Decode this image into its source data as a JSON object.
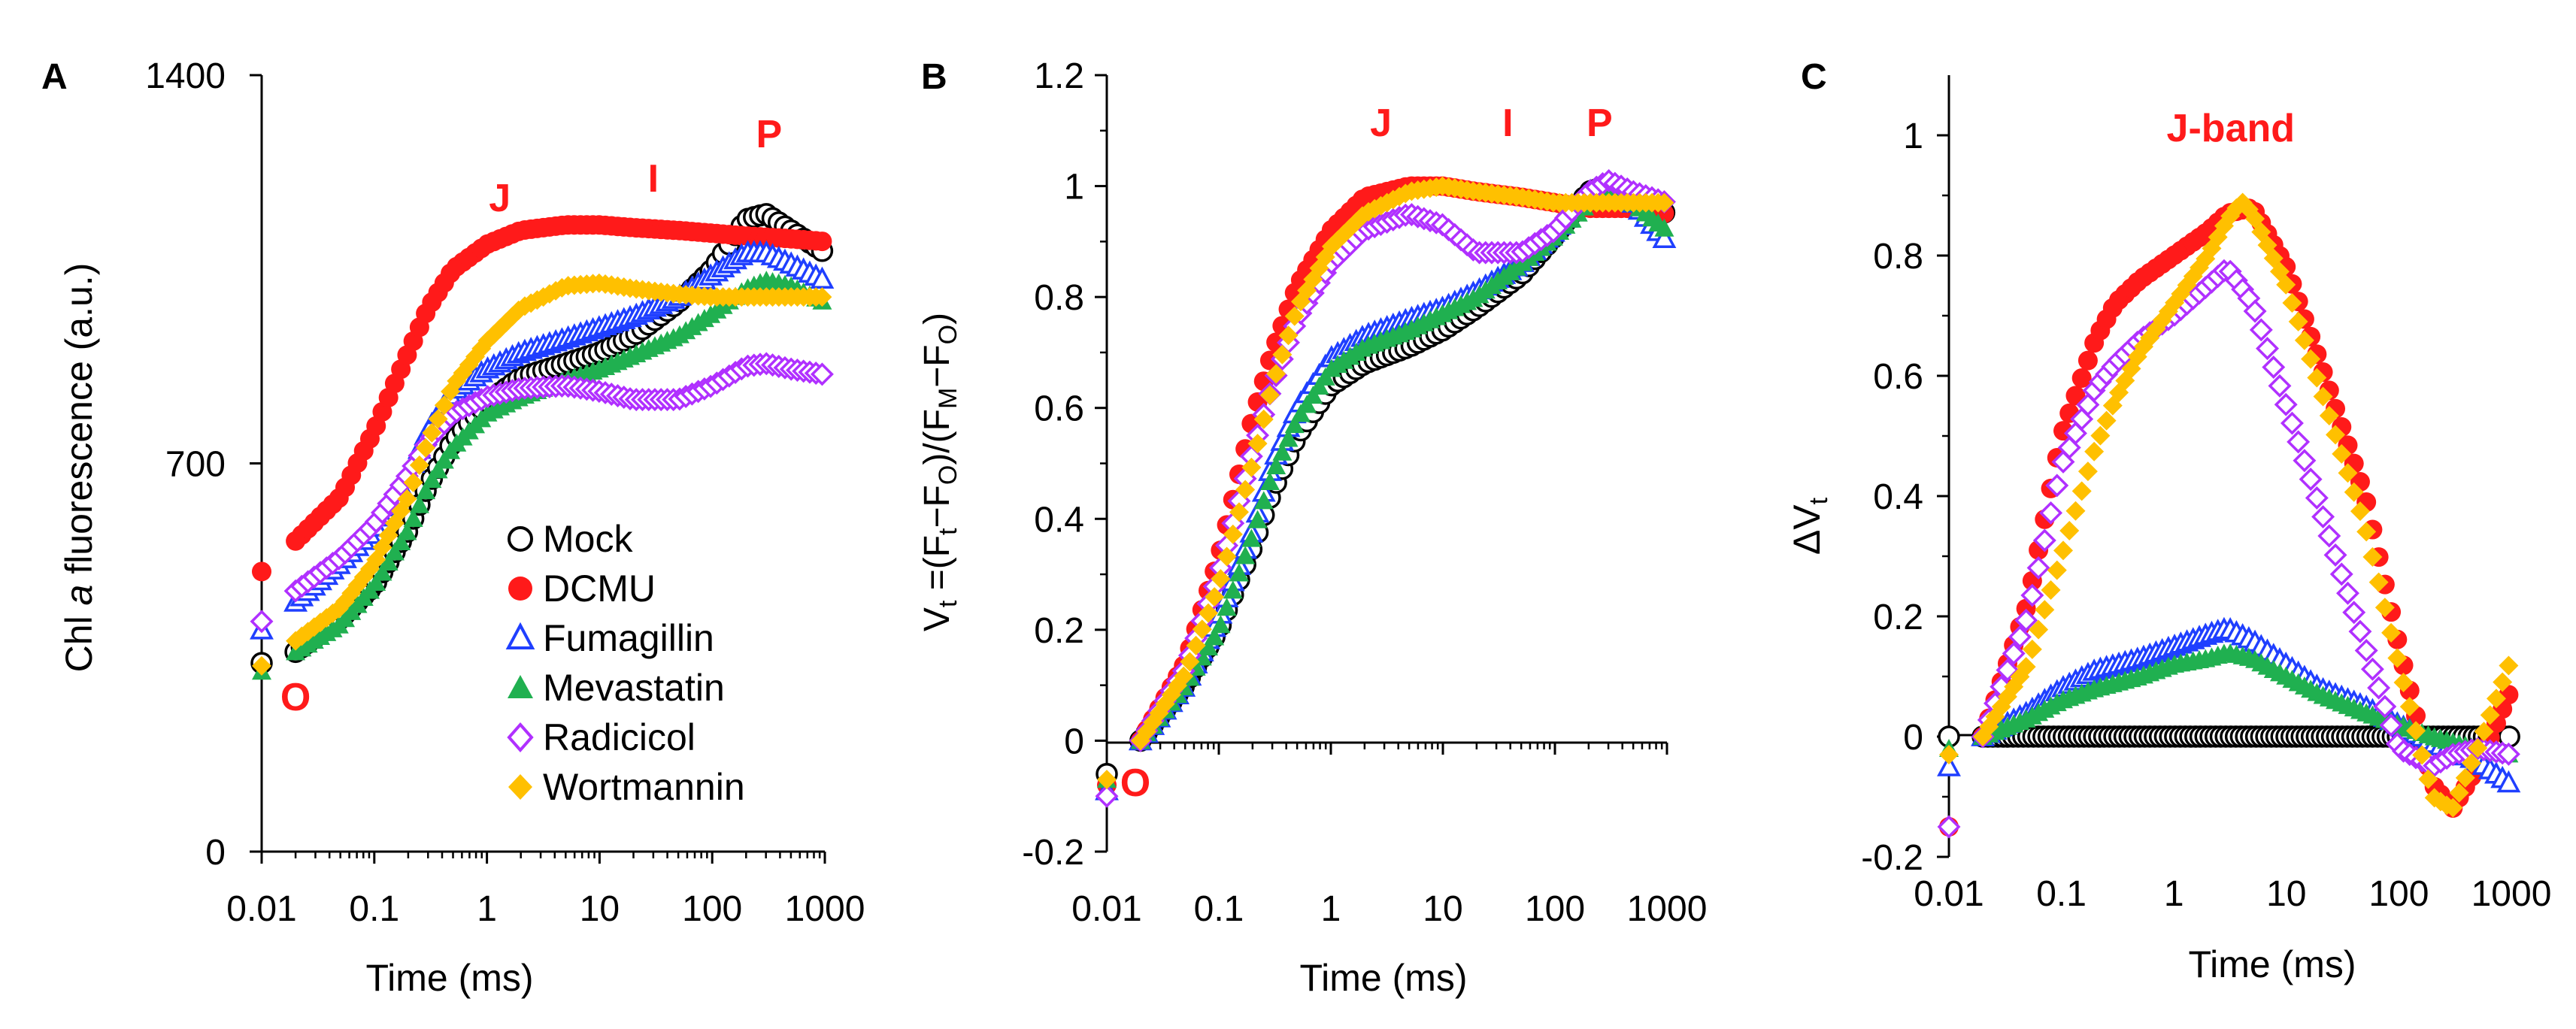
{
  "figure": {
    "colors": {
      "mock": "#000000",
      "dcmu": "#ff1a1a",
      "fumagillin": "#1f3fff",
      "mevastatin": "#20b050",
      "radicicol": "#b030ff",
      "wortmannin": "#ffc000",
      "annotation": "#ff1a1a",
      "axis": "#000000"
    }
  },
  "chart_data": [
    {
      "panel": "A",
      "type": "scatter",
      "xscale": "log",
      "xlabel": "Time (ms)",
      "ylabel_pre": "Chl ",
      "ylabel_italic": "a",
      "ylabel_post": " fluorescence (a.u.)",
      "xlim": [
        0.01,
        1000
      ],
      "ylim": [
        0,
        1400
      ],
      "xticks": [
        "0.01",
        "0.1",
        "1",
        "10",
        "100",
        "1000"
      ],
      "yticks": [
        "0",
        "700",
        "1400"
      ],
      "ytick_values": [
        0,
        700,
        1400
      ],
      "annotations": [
        {
          "text": "O",
          "x": 0.02,
          "y": 255
        },
        {
          "text": "J",
          "x": 1.3,
          "y": 1155
        },
        {
          "text": "I",
          "x": 30,
          "y": 1190
        },
        {
          "text": "P",
          "x": 320,
          "y": 1270
        }
      ],
      "legend": {
        "placement": "lower-right",
        "entries": [
          {
            "key": "mock",
            "label": "Mock",
            "marker": "circle-open"
          },
          {
            "key": "dcmu",
            "label": "DCMU",
            "marker": "circle"
          },
          {
            "key": "fumagillin",
            "label": "Fumagillin",
            "marker": "triangle-open"
          },
          {
            "key": "mevastatin",
            "label": "Mevastatin",
            "marker": "triangle"
          },
          {
            "key": "radicicol",
            "label": "Radicicol",
            "marker": "diamond-open"
          },
          {
            "key": "wortmannin",
            "label": "Wortmannin",
            "marker": "diamond"
          }
        ]
      },
      "series": [
        {
          "name": "Mock",
          "key": "mock",
          "marker": "circle-open",
          "x": [
            0.01,
            0.02,
            0.05,
            0.1,
            0.2,
            0.3,
            0.5,
            1,
            2,
            5,
            10,
            20,
            50,
            100,
            200,
            300,
            500,
            1000
          ],
          "y": [
            340,
            360,
            420,
            480,
            580,
            660,
            740,
            810,
            855,
            880,
            900,
            930,
            990,
            1050,
            1140,
            1150,
            1120,
            1080
          ]
        },
        {
          "name": "DCMU",
          "key": "dcmu",
          "marker": "circle",
          "x": [
            0.01,
            0.02,
            0.05,
            0.1,
            0.2,
            0.3,
            0.5,
            1,
            2,
            5,
            10,
            20,
            50,
            100,
            200,
            500,
            1000
          ],
          "y": [
            505,
            560,
            640,
            760,
            900,
            980,
            1050,
            1095,
            1120,
            1130,
            1130,
            1125,
            1120,
            1115,
            1110,
            1105,
            1100
          ]
        },
        {
          "name": "Fumagillin",
          "key": "fumagillin",
          "marker": "triangle-open",
          "x": [
            0.01,
            0.02,
            0.05,
            0.1,
            0.2,
            0.3,
            0.5,
            1,
            2,
            5,
            10,
            20,
            50,
            100,
            200,
            300,
            500,
            1000
          ],
          "y": [
            400,
            450,
            520,
            580,
            680,
            760,
            830,
            870,
            900,
            925,
            945,
            965,
            1000,
            1040,
            1080,
            1080,
            1060,
            1030
          ]
        },
        {
          "name": "Mevastatin",
          "key": "mevastatin",
          "marker": "triangle",
          "x": [
            0.01,
            0.02,
            0.05,
            0.1,
            0.2,
            0.3,
            0.5,
            1,
            2,
            5,
            10,
            20,
            50,
            100,
            200,
            300,
            500,
            1000
          ],
          "y": [
            325,
            360,
            410,
            480,
            580,
            660,
            730,
            790,
            820,
            850,
            870,
            895,
            930,
            970,
            1015,
            1030,
            1020,
            990
          ]
        },
        {
          "name": "Radicicol",
          "key": "radicicol",
          "marker": "diamond-open",
          "x": [
            0.01,
            0.02,
            0.05,
            0.1,
            0.2,
            0.3,
            0.5,
            1,
            2,
            5,
            10,
            20,
            50,
            100,
            200,
            300,
            500,
            1000
          ],
          "y": [
            415,
            470,
            530,
            590,
            680,
            740,
            790,
            820,
            835,
            840,
            830,
            815,
            815,
            840,
            875,
            880,
            870,
            860
          ]
        },
        {
          "name": "Wortmannin",
          "key": "wortmannin",
          "marker": "diamond",
          "x": [
            0.01,
            0.02,
            0.05,
            0.1,
            0.2,
            0.3,
            0.5,
            1,
            2,
            5,
            10,
            20,
            50,
            100,
            200,
            500,
            1000
          ],
          "y": [
            335,
            380,
            440,
            520,
            640,
            740,
            840,
            920,
            980,
            1020,
            1025,
            1015,
            1005,
            1000,
            1000,
            1000,
            1000
          ]
        }
      ]
    },
    {
      "panel": "B",
      "type": "scatter",
      "xscale": "log",
      "xlabel": "Time (ms)",
      "ylabel": "Vt =(Ft−FO)/(FM−FO)",
      "ylabel_parts": {
        "v": "V",
        "t": "t",
        "eq": " =(F",
        "t2": "t",
        "minus1": "−F",
        "o1": "O",
        "slash": ")/(F",
        "m": "M",
        "minus2": "−F",
        "o2": "O",
        "close": ")"
      },
      "xlim": [
        0.01,
        1000
      ],
      "ylim": [
        -0.2,
        1.2
      ],
      "xticks": [
        "0.01",
        "0.1",
        "1",
        "10",
        "100",
        "1000"
      ],
      "yticks": [
        "-0.2",
        "0",
        "0.2",
        "0.4",
        "0.6",
        "0.8",
        "1",
        "1.2"
      ],
      "ytick_values": [
        -0.2,
        0,
        0.2,
        0.4,
        0.6,
        0.8,
        1,
        1.2
      ],
      "annotations": [
        {
          "text": "O",
          "x": 0.018,
          "y": -0.1
        },
        {
          "text": "J",
          "x": 2.8,
          "y": 1.09
        },
        {
          "text": "I",
          "x": 38,
          "y": 1.09
        },
        {
          "text": "P",
          "x": 250,
          "y": 1.09
        }
      ],
      "series": [
        {
          "name": "Mock",
          "key": "mock",
          "marker": "circle-open",
          "x": [
            0.01,
            0.02,
            0.05,
            0.1,
            0.2,
            0.3,
            0.5,
            1,
            2,
            5,
            10,
            20,
            50,
            100,
            200,
            300,
            500,
            1000
          ],
          "y": [
            -0.06,
            0,
            0.1,
            0.2,
            0.35,
            0.45,
            0.55,
            0.64,
            0.68,
            0.71,
            0.74,
            0.78,
            0.84,
            0.91,
            0.99,
            1.0,
            0.98,
            0.95
          ]
        },
        {
          "name": "DCMU",
          "key": "dcmu",
          "marker": "circle",
          "x": [
            0.01,
            0.02,
            0.05,
            0.1,
            0.2,
            0.3,
            0.5,
            1,
            2,
            5,
            10,
            20,
            50,
            100,
            200,
            500,
            1000
          ],
          "y": [
            -0.08,
            0,
            0.14,
            0.33,
            0.58,
            0.7,
            0.82,
            0.92,
            0.98,
            1.0,
            1.0,
            0.99,
            0.98,
            0.97,
            0.96,
            0.96,
            0.95
          ]
        },
        {
          "name": "Fumagillin",
          "key": "fumagillin",
          "marker": "triangle-open",
          "x": [
            0.01,
            0.02,
            0.05,
            0.1,
            0.2,
            0.3,
            0.5,
            1,
            2,
            5,
            10,
            20,
            50,
            100,
            200,
            300,
            500,
            1000
          ],
          "y": [
            -0.09,
            0,
            0.1,
            0.22,
            0.38,
            0.5,
            0.6,
            0.69,
            0.73,
            0.76,
            0.78,
            0.81,
            0.86,
            0.92,
            0.99,
            1.0,
            0.97,
            0.9
          ]
        },
        {
          "name": "Mevastatin",
          "key": "mevastatin",
          "marker": "triangle",
          "x": [
            0.01,
            0.02,
            0.05,
            0.1,
            0.2,
            0.3,
            0.5,
            1,
            2,
            5,
            10,
            20,
            50,
            100,
            200,
            300,
            500,
            1000
          ],
          "y": [
            -0.07,
            0,
            0.1,
            0.2,
            0.37,
            0.48,
            0.58,
            0.67,
            0.71,
            0.74,
            0.77,
            0.8,
            0.86,
            0.91,
            0.97,
            0.99,
            0.97,
            0.92
          ]
        },
        {
          "name": "Radicicol",
          "key": "radicicol",
          "marker": "diamond-open",
          "x": [
            0.01,
            0.02,
            0.05,
            0.1,
            0.2,
            0.3,
            0.5,
            1,
            2,
            5,
            10,
            20,
            50,
            100,
            200,
            300,
            500,
            1000
          ],
          "y": [
            -0.1,
            0,
            0.13,
            0.3,
            0.52,
            0.64,
            0.76,
            0.86,
            0.92,
            0.95,
            0.93,
            0.88,
            0.88,
            0.92,
            0.99,
            1.01,
            0.99,
            0.97
          ]
        },
        {
          "name": "Wortmannin",
          "key": "wortmannin",
          "marker": "diamond",
          "x": [
            0.01,
            0.02,
            0.05,
            0.1,
            0.2,
            0.3,
            0.5,
            1,
            2,
            5,
            10,
            20,
            50,
            100,
            200,
            500,
            1000
          ],
          "y": [
            -0.07,
            0,
            0.12,
            0.28,
            0.5,
            0.64,
            0.78,
            0.89,
            0.95,
            0.99,
            1.0,
            0.99,
            0.98,
            0.97,
            0.97,
            0.97,
            0.97
          ]
        }
      ]
    },
    {
      "panel": "C",
      "type": "scatter",
      "xscale": "log",
      "xlabel": "Time (ms)",
      "ylabel_delta": "Δ",
      "ylabel_v": "V",
      "ylabel_sub": "t",
      "xlim": [
        0.01,
        1000
      ],
      "ylim": [
        -0.2,
        1.1
      ],
      "xticks": [
        "0.01",
        "0.1",
        "1",
        "10",
        "100",
        "1000"
      ],
      "yticks": [
        "-0.2",
        "0",
        "0.2",
        "0.4",
        "0.6",
        "0.8",
        "1"
      ],
      "ytick_values": [
        -0.2,
        0,
        0.2,
        0.4,
        0.6,
        0.8,
        1
      ],
      "annotations": [
        {
          "text": "J-band",
          "x": 3.2,
          "y": 0.99
        }
      ],
      "series": [
        {
          "name": "Mock",
          "key": "mock",
          "marker": "circle-open",
          "x": [
            0.01,
            0.02,
            0.05,
            0.1,
            0.2,
            0.5,
            1,
            2,
            5,
            10,
            20,
            50,
            100,
            200,
            500,
            1000
          ],
          "y": [
            0,
            0,
            0,
            0,
            0,
            0,
            0,
            0,
            0,
            0,
            0,
            0,
            0,
            0,
            0,
            0
          ]
        },
        {
          "name": "DCMU",
          "key": "dcmu",
          "marker": "circle",
          "x": [
            0.01,
            0.02,
            0.05,
            0.1,
            0.2,
            0.3,
            0.5,
            1,
            2,
            3,
            5,
            10,
            20,
            50,
            100,
            200,
            300,
            500,
            1000
          ],
          "y": [
            -0.15,
            0,
            0.22,
            0.5,
            0.66,
            0.72,
            0.76,
            0.8,
            0.84,
            0.87,
            0.88,
            0.78,
            0.62,
            0.4,
            0.15,
            -0.08,
            -0.12,
            -0.05,
            0.08
          ]
        },
        {
          "name": "Fumagillin",
          "key": "fumagillin",
          "marker": "triangle-open",
          "x": [
            0.01,
            0.02,
            0.05,
            0.1,
            0.2,
            0.5,
            1,
            2,
            3,
            5,
            10,
            20,
            50,
            100,
            200,
            500,
            1000
          ],
          "y": [
            -0.05,
            0,
            0.04,
            0.08,
            0.11,
            0.13,
            0.15,
            0.17,
            0.18,
            0.16,
            0.12,
            0.08,
            0.05,
            0.02,
            -0.01,
            -0.04,
            -0.08
          ]
        },
        {
          "name": "Mevastatin",
          "key": "mevastatin",
          "marker": "triangle",
          "x": [
            0.01,
            0.02,
            0.05,
            0.1,
            0.2,
            0.5,
            1,
            2,
            3,
            5,
            10,
            20,
            50,
            100,
            200,
            500,
            1000
          ],
          "y": [
            -0.02,
            0,
            0.03,
            0.06,
            0.08,
            0.1,
            0.12,
            0.13,
            0.14,
            0.13,
            0.1,
            0.07,
            0.04,
            0.02,
            0,
            -0.02,
            -0.03
          ]
        },
        {
          "name": "Radicicol",
          "key": "radicicol",
          "marker": "diamond-open",
          "x": [
            0.01,
            0.02,
            0.05,
            0.1,
            0.2,
            0.3,
            0.5,
            1,
            2,
            3,
            5,
            10,
            20,
            50,
            100,
            200,
            300,
            500,
            1000
          ],
          "y": [
            -0.15,
            0,
            0.2,
            0.45,
            0.58,
            0.62,
            0.66,
            0.7,
            0.75,
            0.78,
            0.72,
            0.55,
            0.38,
            0.15,
            -0.02,
            -0.05,
            -0.03,
            -0.02,
            -0.03
          ]
        },
        {
          "name": "Wortmannin",
          "key": "wortmannin",
          "marker": "diamond",
          "x": [
            0.01,
            0.02,
            0.05,
            0.1,
            0.2,
            0.3,
            0.5,
            1,
            2,
            3,
            4,
            5,
            10,
            20,
            50,
            100,
            200,
            300,
            500,
            1000
          ],
          "y": [
            -0.03,
            0,
            0.12,
            0.3,
            0.48,
            0.56,
            0.64,
            0.72,
            0.8,
            0.86,
            0.89,
            0.87,
            0.75,
            0.58,
            0.35,
            0.12,
            -0.1,
            -0.12,
            -0.02,
            0.13
          ]
        }
      ]
    }
  ]
}
